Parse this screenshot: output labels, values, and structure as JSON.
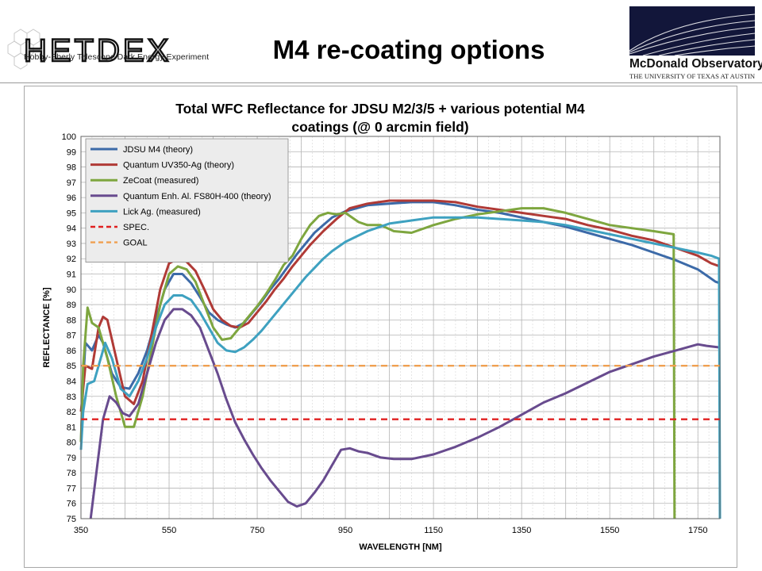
{
  "slide": {
    "title": "M4 re-coating options",
    "logo_left_text": "HETDEX",
    "logo_left_tagline": "Hobby-Eberly Telescope Dark Energy Experiment",
    "logo_right_name": "McDonald Observatory",
    "logo_right_sub": "THE UNIVERSITY OF TEXAS AT AUSTIN"
  },
  "chart_data": {
    "type": "line",
    "title_line1": "Total WFC Reflectance for JDSU M2/3/5 + various potential M4",
    "title_line2": "coatings (@ 0 arcmin field)",
    "xlabel": "WAVELENGTH [NM]",
    "ylabel": "REFLECTANCE [%]",
    "xlim": [
      350,
      1800
    ],
    "ylim": [
      75,
      100
    ],
    "xticks": [
      350,
      550,
      750,
      950,
      1150,
      1350,
      1550,
      1750
    ],
    "yticks": [
      75,
      76,
      77,
      78,
      79,
      80,
      81,
      82,
      83,
      84,
      85,
      86,
      87,
      88,
      89,
      90,
      91,
      92,
      93,
      94,
      95,
      96,
      97,
      98,
      99,
      100
    ],
    "grid": true,
    "legend_position": "top-left",
    "series": [
      {
        "name": "JDSU M4 (theory)",
        "color": "#3c6aa8",
        "points": [
          [
            350,
            80
          ],
          [
            355,
            84
          ],
          [
            360,
            86.5
          ],
          [
            375,
            86
          ],
          [
            390,
            87
          ],
          [
            400,
            86.5
          ],
          [
            420,
            84.5
          ],
          [
            440,
            83.6
          ],
          [
            460,
            83.5
          ],
          [
            480,
            84.5
          ],
          [
            500,
            86
          ],
          [
            520,
            88
          ],
          [
            540,
            90
          ],
          [
            560,
            91
          ],
          [
            580,
            91
          ],
          [
            600,
            90.4
          ],
          [
            620,
            89.5
          ],
          [
            640,
            88.5
          ],
          [
            660,
            88
          ],
          [
            680,
            87.7
          ],
          [
            700,
            87.5
          ],
          [
            720,
            87.8
          ],
          [
            740,
            88.5
          ],
          [
            760,
            89.2
          ],
          [
            780,
            90
          ],
          [
            800,
            90.7
          ],
          [
            820,
            91.5
          ],
          [
            840,
            92.3
          ],
          [
            860,
            93
          ],
          [
            880,
            93.7
          ],
          [
            900,
            94.2
          ],
          [
            920,
            94.7
          ],
          [
            950,
            95.1
          ],
          [
            1000,
            95.5
          ],
          [
            1050,
            95.6
          ],
          [
            1100,
            95.7
          ],
          [
            1150,
            95.7
          ],
          [
            1200,
            95.5
          ],
          [
            1250,
            95.2
          ],
          [
            1300,
            95
          ],
          [
            1350,
            94.7
          ],
          [
            1400,
            94.4
          ],
          [
            1450,
            94.1
          ],
          [
            1500,
            93.7
          ],
          [
            1550,
            93.3
          ],
          [
            1600,
            92.9
          ],
          [
            1650,
            92.4
          ],
          [
            1700,
            91.9
          ],
          [
            1750,
            91.3
          ],
          [
            1770,
            90.9
          ],
          [
            1790,
            90.5
          ],
          [
            1800,
            90.4
          ]
        ]
      },
      {
        "name": "Quantum UV350-Ag (theory)",
        "color": "#b03a36",
        "points": [
          [
            350,
            82
          ],
          [
            355,
            83.5
          ],
          [
            360,
            85
          ],
          [
            375,
            84.8
          ],
          [
            390,
            87.5
          ],
          [
            400,
            88.2
          ],
          [
            410,
            88
          ],
          [
            430,
            85.5
          ],
          [
            450,
            83
          ],
          [
            470,
            82.5
          ],
          [
            490,
            84
          ],
          [
            510,
            87
          ],
          [
            530,
            90
          ],
          [
            550,
            91.7
          ],
          [
            570,
            92
          ],
          [
            590,
            91.8
          ],
          [
            610,
            91.2
          ],
          [
            630,
            90
          ],
          [
            650,
            88.7
          ],
          [
            670,
            88
          ],
          [
            690,
            87.6
          ],
          [
            710,
            87.5
          ],
          [
            730,
            87.8
          ],
          [
            750,
            88.5
          ],
          [
            770,
            89.2
          ],
          [
            790,
            90
          ],
          [
            810,
            90.7
          ],
          [
            830,
            91.5
          ],
          [
            850,
            92.2
          ],
          [
            870,
            92.9
          ],
          [
            900,
            93.8
          ],
          [
            930,
            94.6
          ],
          [
            960,
            95.3
          ],
          [
            1000,
            95.6
          ],
          [
            1050,
            95.8
          ],
          [
            1100,
            95.8
          ],
          [
            1150,
            95.8
          ],
          [
            1200,
            95.7
          ],
          [
            1250,
            95.4
          ],
          [
            1300,
            95.2
          ],
          [
            1350,
            95
          ],
          [
            1400,
            94.8
          ],
          [
            1450,
            94.6
          ],
          [
            1500,
            94.2
          ],
          [
            1550,
            93.9
          ],
          [
            1600,
            93.5
          ],
          [
            1650,
            93.2
          ],
          [
            1700,
            92.7
          ],
          [
            1750,
            92.2
          ],
          [
            1780,
            91.7
          ],
          [
            1800,
            91.5
          ]
        ]
      },
      {
        "name": "ZeCoat (measured)",
        "color": "#7ea63f",
        "points": [
          [
            350,
            80
          ],
          [
            355,
            85
          ],
          [
            365,
            88.8
          ],
          [
            375,
            87.8
          ],
          [
            390,
            87.5
          ],
          [
            410,
            85.5
          ],
          [
            430,
            83
          ],
          [
            450,
            81
          ],
          [
            470,
            81
          ],
          [
            490,
            83
          ],
          [
            510,
            86
          ],
          [
            530,
            89
          ],
          [
            550,
            91
          ],
          [
            570,
            91.5
          ],
          [
            590,
            91.3
          ],
          [
            610,
            90.5
          ],
          [
            630,
            89
          ],
          [
            650,
            87.5
          ],
          [
            670,
            86.7
          ],
          [
            690,
            86.8
          ],
          [
            710,
            87.5
          ],
          [
            730,
            88.2
          ],
          [
            750,
            88.9
          ],
          [
            770,
            89.7
          ],
          [
            790,
            90.6
          ],
          [
            810,
            91.6
          ],
          [
            830,
            92.2
          ],
          [
            850,
            93.3
          ],
          [
            870,
            94.2
          ],
          [
            890,
            94.8
          ],
          [
            910,
            95
          ],
          [
            930,
            94.9
          ],
          [
            950,
            95
          ],
          [
            980,
            94.4
          ],
          [
            1000,
            94.2
          ],
          [
            1030,
            94.2
          ],
          [
            1060,
            93.8
          ],
          [
            1100,
            93.7
          ],
          [
            1150,
            94.2
          ],
          [
            1200,
            94.6
          ],
          [
            1250,
            94.9
          ],
          [
            1300,
            95.1
          ],
          [
            1350,
            95.3
          ],
          [
            1400,
            95.3
          ],
          [
            1450,
            95
          ],
          [
            1500,
            94.6
          ],
          [
            1550,
            94.2
          ],
          [
            1600,
            94
          ],
          [
            1650,
            93.8
          ],
          [
            1695,
            93.6
          ],
          [
            1697,
            75
          ]
        ]
      },
      {
        "name": "Quantum Enh. Al. FS80H-400 (theory)",
        "color": "#684b8e",
        "points": [
          [
            372,
            75
          ],
          [
            385,
            78
          ],
          [
            400,
            81.5
          ],
          [
            415,
            83
          ],
          [
            430,
            82.6
          ],
          [
            445,
            81.9
          ],
          [
            460,
            81.7
          ],
          [
            480,
            82.5
          ],
          [
            500,
            84.5
          ],
          [
            520,
            86.5
          ],
          [
            540,
            88
          ],
          [
            560,
            88.7
          ],
          [
            580,
            88.7
          ],
          [
            600,
            88.3
          ],
          [
            620,
            87.5
          ],
          [
            640,
            86
          ],
          [
            660,
            84.5
          ],
          [
            680,
            82.8
          ],
          [
            700,
            81.3
          ],
          [
            720,
            80.2
          ],
          [
            740,
            79.2
          ],
          [
            760,
            78.3
          ],
          [
            780,
            77.5
          ],
          [
            800,
            76.8
          ],
          [
            820,
            76.1
          ],
          [
            840,
            75.8
          ],
          [
            860,
            76
          ],
          [
            880,
            76.7
          ],
          [
            900,
            77.5
          ],
          [
            920,
            78.5
          ],
          [
            940,
            79.5
          ],
          [
            960,
            79.6
          ],
          [
            980,
            79.4
          ],
          [
            1000,
            79.3
          ],
          [
            1030,
            79
          ],
          [
            1060,
            78.9
          ],
          [
            1100,
            78.9
          ],
          [
            1150,
            79.2
          ],
          [
            1200,
            79.7
          ],
          [
            1250,
            80.3
          ],
          [
            1300,
            81
          ],
          [
            1350,
            81.8
          ],
          [
            1400,
            82.6
          ],
          [
            1450,
            83.2
          ],
          [
            1500,
            83.9
          ],
          [
            1550,
            84.6
          ],
          [
            1600,
            85.1
          ],
          [
            1650,
            85.6
          ],
          [
            1700,
            86
          ],
          [
            1750,
            86.4
          ],
          [
            1770,
            86.3
          ],
          [
            1800,
            86.2
          ]
        ]
      },
      {
        "name": "Lick Ag. (measured)",
        "color": "#3ea1c0",
        "points": [
          [
            350,
            79.5
          ],
          [
            355,
            82
          ],
          [
            365,
            83.8
          ],
          [
            380,
            84
          ],
          [
            395,
            85.5
          ],
          [
            405,
            86.5
          ],
          [
            420,
            85.5
          ],
          [
            440,
            83.5
          ],
          [
            460,
            83
          ],
          [
            480,
            84
          ],
          [
            500,
            85.5
          ],
          [
            520,
            87.5
          ],
          [
            540,
            89
          ],
          [
            560,
            89.6
          ],
          [
            580,
            89.6
          ],
          [
            600,
            89.3
          ],
          [
            620,
            88.5
          ],
          [
            640,
            87.5
          ],
          [
            660,
            86.5
          ],
          [
            680,
            86
          ],
          [
            700,
            85.9
          ],
          [
            720,
            86.2
          ],
          [
            740,
            86.7
          ],
          [
            760,
            87.3
          ],
          [
            780,
            88
          ],
          [
            800,
            88.7
          ],
          [
            820,
            89.4
          ],
          [
            840,
            90.1
          ],
          [
            860,
            90.8
          ],
          [
            880,
            91.4
          ],
          [
            900,
            92
          ],
          [
            920,
            92.5
          ],
          [
            950,
            93.1
          ],
          [
            1000,
            93.8
          ],
          [
            1050,
            94.3
          ],
          [
            1100,
            94.5
          ],
          [
            1150,
            94.7
          ],
          [
            1200,
            94.7
          ],
          [
            1250,
            94.7
          ],
          [
            1300,
            94.6
          ],
          [
            1350,
            94.5
          ],
          [
            1400,
            94.4
          ],
          [
            1450,
            94.2
          ],
          [
            1500,
            93.9
          ],
          [
            1550,
            93.6
          ],
          [
            1600,
            93.3
          ],
          [
            1650,
            93
          ],
          [
            1700,
            92.7
          ],
          [
            1750,
            92.4
          ],
          [
            1780,
            92.2
          ],
          [
            1798,
            92
          ],
          [
            1800,
            75
          ]
        ]
      },
      {
        "name": "SPEC.",
        "color": "#e02020",
        "dashed": true,
        "points": [
          [
            350,
            81.5
          ],
          [
            1800,
            81.5
          ]
        ]
      },
      {
        "name": "GOAL",
        "color": "#f0a050",
        "dashed": true,
        "points": [
          [
            350,
            85
          ],
          [
            1800,
            85
          ]
        ]
      }
    ]
  }
}
